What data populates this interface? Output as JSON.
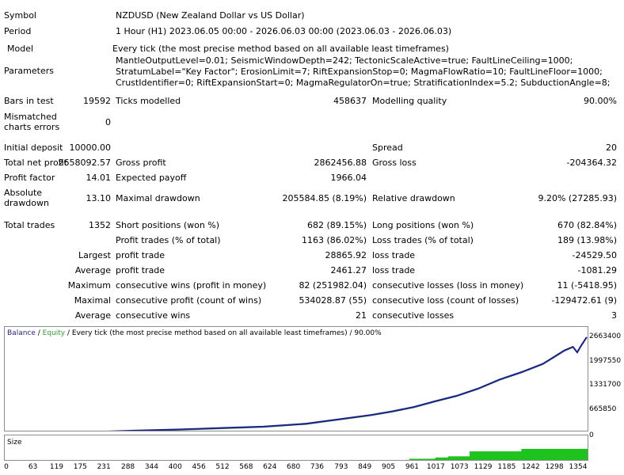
{
  "report": {
    "symbol": {
      "label": "Symbol",
      "value": "NZDUSD (New Zealand Dollar vs US Dollar)"
    },
    "period": {
      "label": "Period",
      "value": "1 Hour (H1) 2023.06.05 00:00 - 2026.06.03 00:00 (2023.06.03 - 2026.06.03)"
    },
    "model": {
      "label": "Model",
      "value": "Every tick (the most precise method based on all available least timeframes)"
    },
    "parameters": {
      "label": "Parameters",
      "value": "MantleOutputLevel=0.01; SeismicWindowDepth=242; TectonicScaleActive=true; FaultLineCeiling=1000; StratumLabel=\"Key Factor\"; ErosionLimit=7; RiftExpansionStop=0; MagmaFlowRatio=10; FaultLineFloor=1000; CrustIdentifier=0; RiftExpansionStart=0; MagmaRegulatorOn=true; StratificationIndex=5.2; SubductionAngle=8;"
    },
    "bars_in_test": {
      "label": "Bars in test",
      "value": "19592"
    },
    "ticks_modelled": {
      "label": "Ticks modelled",
      "value": "458637"
    },
    "modelling_quality": {
      "label": "Modelling quality",
      "value": "90.00%"
    },
    "mismatched": {
      "label_1": "Mismatched",
      "label_2": "charts errors",
      "value": "0"
    },
    "initial_deposit": {
      "label": "Initial deposit",
      "value": "10000.00"
    },
    "spread": {
      "label": "Spread",
      "value": "20"
    },
    "total_net_profit": {
      "label": "Total net profit",
      "value": "2658092.57"
    },
    "gross_profit": {
      "label": "Gross profit",
      "value": "2862456.88"
    },
    "gross_loss": {
      "label": "Gross loss",
      "value": "-204364.32"
    },
    "profit_factor": {
      "label": "Profit factor",
      "value": "14.01"
    },
    "expected_payoff": {
      "label": "Expected payoff",
      "value": "1966.04"
    },
    "absolute_drawdown": {
      "label_1": "Absolute",
      "label_2": "drawdown",
      "value": "13.10"
    },
    "maximal_drawdown": {
      "label": "Maximal drawdown",
      "value": "205584.85 (8.19%)"
    },
    "relative_drawdown": {
      "label": "Relative drawdown",
      "value": "9.20% (27285.93)"
    },
    "total_trades": {
      "label": "Total trades",
      "value": "1352"
    },
    "short_positions": {
      "label": "Short positions (won %)",
      "value": "682 (89.15%)"
    },
    "long_positions": {
      "label": "Long positions (won %)",
      "value": "670 (82.84%)"
    },
    "profit_trades": {
      "label": "Profit trades (% of total)",
      "value": "1163 (86.02%)"
    },
    "loss_trades": {
      "label": "Loss trades (% of total)",
      "value": "189 (13.98%)"
    },
    "largest": {
      "label": "Largest",
      "profit_label": "profit trade",
      "profit_value": "28865.92",
      "loss_label": "loss trade",
      "loss_value": "-24529.50"
    },
    "average": {
      "label": "Average",
      "profit_label": "profit trade",
      "profit_value": "2461.27",
      "loss_label": "loss trade",
      "loss_value": "-1081.29"
    },
    "maximum": {
      "label": "Maximum",
      "wins_label": "consecutive wins (profit in money)",
      "wins_value": "82 (251982.04)",
      "losses_label": "consecutive losses (loss in money)",
      "losses_value": "11 (-5418.95)"
    },
    "maximal": {
      "label": "Maximal",
      "profit_label": "consecutive profit (count of wins)",
      "profit_value": "534028.87 (55)",
      "loss_label": "consecutive loss (count of losses)",
      "loss_value": "-129472.61 (9)"
    },
    "average_consecutive": {
      "label": "Average",
      "wins_label": "consecutive wins",
      "wins_value": "21",
      "losses_label": "consecutive losses",
      "losses_value": "3"
    }
  },
  "chart_title": {
    "balance": "Balance",
    "sep": " / ",
    "equity": "Equity",
    "rest": " / Every tick (the most precise method based on all available least timeframes) / 90.00%"
  },
  "size_label": "Size",
  "colors": {
    "balance": "#1f1f8f",
    "equity": "#2e9e2e",
    "size": "#1ec31e"
  },
  "chart_data": {
    "type": "line",
    "series": [
      {
        "name": "Balance"
      },
      {
        "name": "Equity"
      }
    ],
    "x": [
      0,
      100,
      200,
      300,
      400,
      500,
      600,
      700,
      750,
      800,
      850,
      900,
      950,
      1000,
      1050,
      1100,
      1150,
      1200,
      1250,
      1280,
      1300,
      1320,
      1330,
      1340,
      1352
    ],
    "y": [
      10000,
      20000,
      50000,
      90000,
      120000,
      160000,
      200000,
      280000,
      360000,
      440000,
      520000,
      620000,
      740000,
      900000,
      1050000,
      1250000,
      1500000,
      1700000,
      1930000,
      2150000,
      2300000,
      2400000,
      2250000,
      2450000,
      2668000
    ],
    "y_ticks": [
      "2663400",
      "1997550",
      "1331700",
      "665850",
      "0"
    ],
    "y_tick_values": [
      2663400,
      1997550,
      1331700,
      665850,
      0
    ],
    "x_ticks": [
      "0",
      "63",
      "119",
      "175",
      "231",
      "288",
      "344",
      "400",
      "456",
      "512",
      "568",
      "624",
      "680",
      "736",
      "793",
      "849",
      "905",
      "961",
      "1017",
      "1073",
      "1129",
      "1185",
      "1242",
      "1298",
      "1354"
    ],
    "ylim": [
      0,
      2663400
    ],
    "xlim": [
      0,
      1354
    ],
    "size_series": {
      "name": "Size",
      "x": [
        0,
        849,
        940,
        1000,
        1030,
        1073,
        1080,
        1200,
        1354
      ],
      "y": [
        0,
        0,
        0.05,
        0.1,
        0.15,
        0.15,
        0.35,
        0.45,
        0.9
      ]
    }
  }
}
